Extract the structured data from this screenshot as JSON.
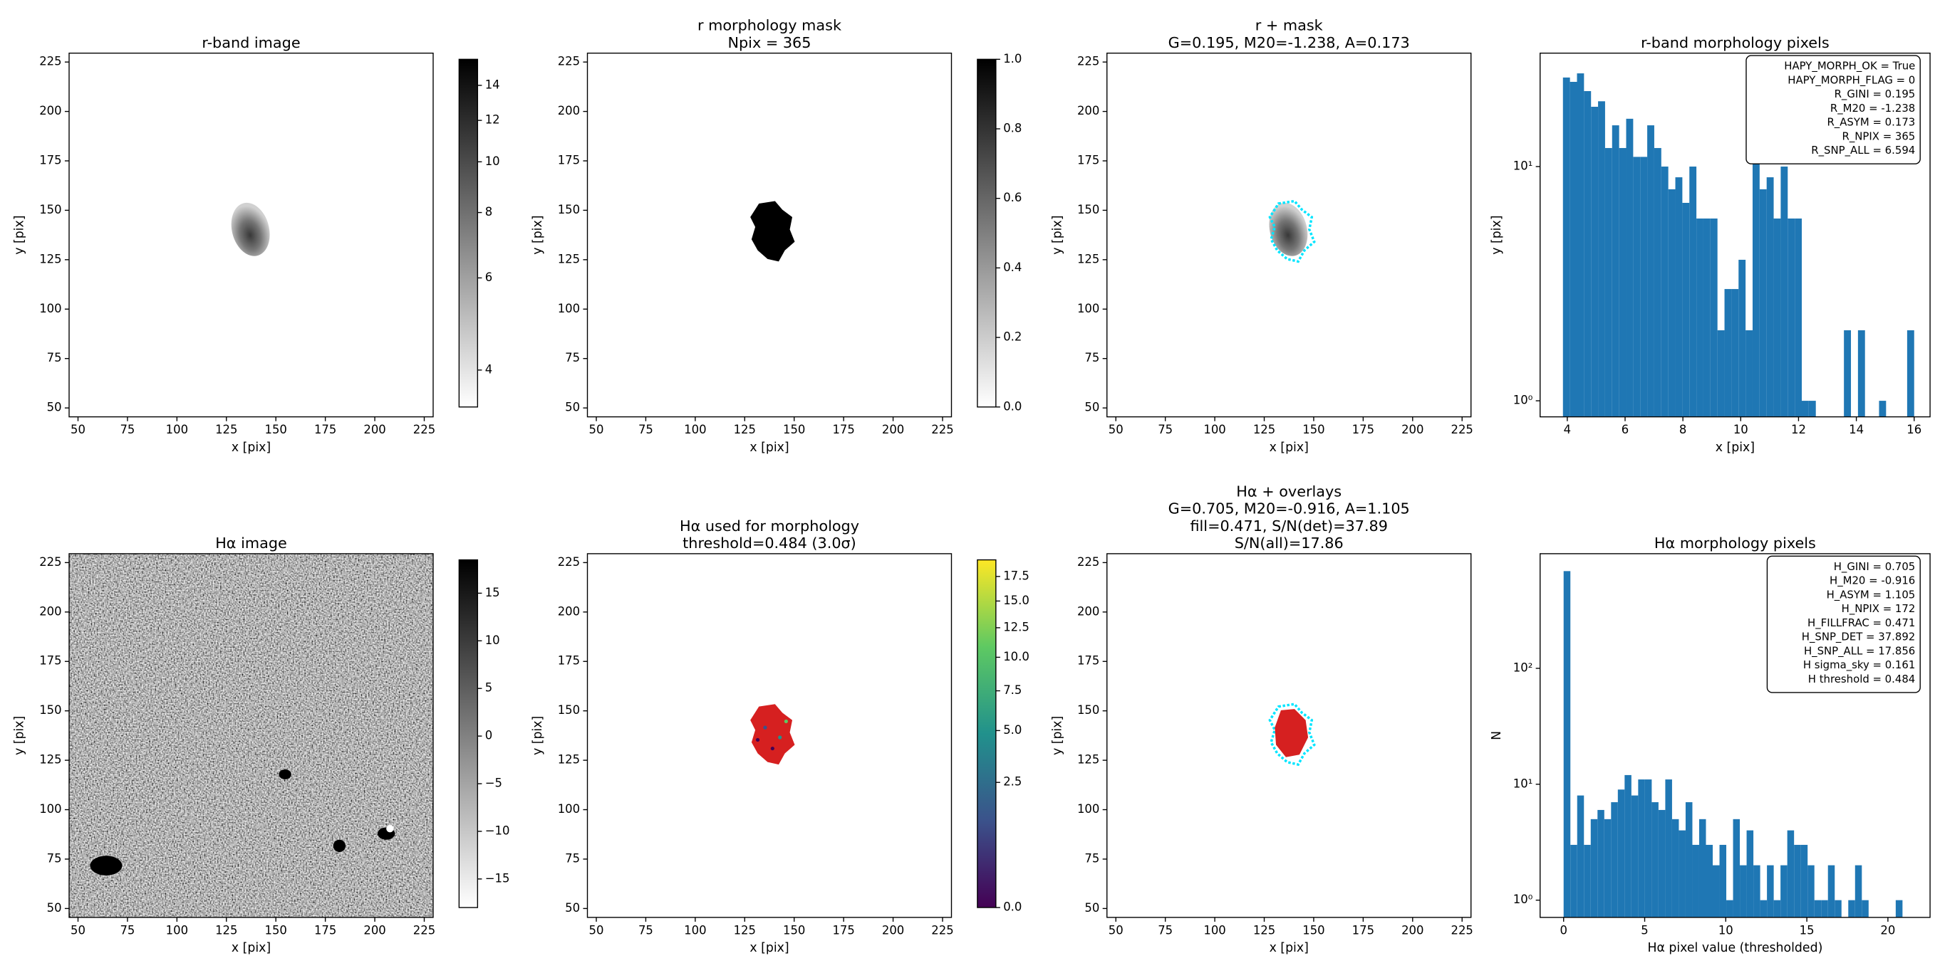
{
  "chart_data": [
    {
      "type": "image",
      "title": [
        "r-band image"
      ],
      "xlabel": "x [pix]",
      "ylabel": "y [pix]",
      "xlim": [
        45.5,
        229.5
      ],
      "ylim": [
        45.5,
        229.5
      ],
      "xticks": [
        50,
        75,
        100,
        125,
        150,
        175,
        200,
        225
      ],
      "yticks": [
        50,
        75,
        100,
        125,
        150,
        175,
        200,
        225
      ],
      "colorbar": {
        "cmap": "gray_r",
        "scale": "log",
        "lim": [
          3.4,
          15.7
        ],
        "ticks": [
          4,
          6,
          8,
          10,
          12,
          14
        ]
      }
    },
    {
      "type": "image",
      "title": [
        "r morphology mask",
        "Npix = 365"
      ],
      "xlabel": "x [pix]",
      "ylabel": "y [pix]",
      "xlim": [
        45.5,
        229.5
      ],
      "ylim": [
        45.5,
        229.5
      ],
      "xticks": [
        50,
        75,
        100,
        125,
        150,
        175,
        200,
        225
      ],
      "yticks": [
        50,
        75,
        100,
        125,
        150,
        175,
        200,
        225
      ],
      "colorbar": {
        "cmap": "gray_r",
        "scale": "linear",
        "lim": [
          0,
          1
        ],
        "ticks": [
          {
            "value": 0,
            "label": "0.0"
          },
          0.2,
          0.4,
          0.6,
          0.8,
          {
            "value": 1,
            "label": "1.0"
          }
        ]
      }
    },
    {
      "type": "image",
      "title": [
        "r + mask",
        "G=0.195, M20=-1.238, A=0.173"
      ],
      "xlabel": "x [pix]",
      "ylabel": "y [pix]",
      "xlim": [
        45.5,
        229.5
      ],
      "ylim": [
        45.5,
        229.5
      ],
      "xticks": [
        50,
        75,
        100,
        125,
        150,
        175,
        200,
        225
      ],
      "yticks": [
        50,
        75,
        100,
        125,
        150,
        175,
        200,
        225
      ]
    },
    {
      "type": "histogram",
      "title": [
        "r-band morphology pixels"
      ],
      "xlabel": "x [pix]",
      "ylabel": "y [pix]",
      "color": "#1f77b4",
      "ylog": true,
      "xlim": [
        3.06,
        16.55
      ],
      "ylim": [
        0.854,
        30.5
      ],
      "xticks": [
        4,
        6,
        8,
        10,
        12,
        14,
        16
      ],
      "yticks": [
        {
          "value": 1,
          "label": "10⁰"
        },
        {
          "value": 10,
          "label": "10¹"
        }
      ],
      "bins": [
        3.85,
        4.093,
        4.336,
        4.579,
        4.822,
        5.065,
        5.308,
        5.551,
        5.794,
        6.037,
        6.28,
        6.523,
        6.766,
        7.009,
        7.252,
        7.495,
        7.738,
        7.981,
        8.224,
        8.467,
        8.71,
        8.953,
        9.196,
        9.439,
        9.682,
        9.925,
        10.168,
        10.411,
        10.654,
        10.897,
        11.14,
        11.383,
        11.626,
        11.869,
        12.112,
        12.355,
        12.598,
        12.841,
        13.084,
        13.327,
        13.57,
        13.813,
        14.056,
        14.299,
        14.542,
        14.785,
        15.028,
        15.271,
        15.514,
        15.757,
        16.0
      ],
      "values": [
        24,
        23,
        25,
        21,
        18,
        19,
        12,
        15,
        12,
        16,
        11,
        11,
        15,
        12,
        10,
        8,
        9,
        7,
        10,
        6,
        6,
        6,
        2,
        3,
        3,
        4,
        2,
        13,
        8,
        9,
        6,
        10,
        6,
        6,
        1,
        1,
        0,
        0,
        0,
        0,
        2,
        0,
        2,
        0,
        0,
        1,
        0,
        0,
        0,
        2
      ],
      "textbox": [
        "HAPY_MORPH_OK = True",
        "HAPY_MORPH_FLAG = 0",
        "R_GINI = 0.195",
        "R_M20 = -1.238",
        "R_ASYM = 0.173",
        "R_NPIX = 365",
        "R_SNP_ALL = 6.594"
      ]
    },
    {
      "type": "image",
      "title": [
        "Hα image"
      ],
      "xlabel": "x [pix]",
      "ylabel": "y [pix]",
      "xlim": [
        45.5,
        229.5
      ],
      "ylim": [
        45.5,
        229.5
      ],
      "xticks": [
        50,
        75,
        100,
        125,
        150,
        175,
        200,
        225
      ],
      "yticks": [
        50,
        75,
        100,
        125,
        150,
        175,
        200,
        225
      ],
      "colorbar": {
        "cmap": "gray_r",
        "scale": "linear",
        "lim": [
          -18,
          18.5
        ],
        "ticks": [
          15,
          10,
          5,
          0,
          {
            "value": -5,
            "label": "−5"
          },
          {
            "value": -10,
            "label": "−10"
          },
          {
            "value": -15,
            "label": "−15"
          }
        ]
      }
    },
    {
      "type": "image",
      "title": [
        "Hα used for morphology",
        "threshold=0.484 (3.0σ)"
      ],
      "xlabel": "x [pix]",
      "ylabel": "y [pix]",
      "xlim": [
        45.5,
        229.5
      ],
      "ylim": [
        45.5,
        229.5
      ],
      "xticks": [
        50,
        75,
        100,
        125,
        150,
        175,
        200,
        225
      ],
      "yticks": [
        50,
        75,
        100,
        125,
        150,
        175,
        200,
        225
      ],
      "colorbar": {
        "cmap": "viridis",
        "scale": "sqrt",
        "lim": [
          0,
          19.3
        ],
        "ticks": [
          {
            "value": 0,
            "label": "0.0"
          },
          2.5,
          {
            "value": 5,
            "label": "5.0"
          },
          7.5,
          {
            "value": 10,
            "label": "10.0"
          },
          12.5,
          {
            "value": 15,
            "label": "15.0"
          },
          17.5
        ]
      }
    },
    {
      "type": "image",
      "title": [
        "Hα + overlays",
        "G=0.705, M20=-0.916, A=1.105",
        "fill=0.471, S/N(det)=37.89",
        "S/N(all)=17.86"
      ],
      "xlabel": "x [pix]",
      "ylabel": "y [pix]",
      "xlim": [
        45.5,
        229.5
      ],
      "ylim": [
        45.5,
        229.5
      ],
      "xticks": [
        50,
        75,
        100,
        125,
        150,
        175,
        200,
        225
      ],
      "yticks": [
        50,
        75,
        100,
        125,
        150,
        175,
        200,
        225
      ]
    },
    {
      "type": "histogram",
      "title": [
        "Hα morphology pixels"
      ],
      "xlabel": "Hα pixel value (thresholded)",
      "ylabel": "N",
      "color": "#1f77b4",
      "ylog": true,
      "xlim": [
        -1.45,
        22.6
      ],
      "ylim": [
        0.71,
        975
      ],
      "xticks": [
        0,
        5,
        10,
        15,
        20
      ],
      "yticks": [
        {
          "value": 1,
          "label": "10⁰"
        },
        {
          "value": 10,
          "label": "10¹"
        },
        {
          "value": 100,
          "label": "10²"
        }
      ],
      "bins": [
        0,
        0.418,
        0.836,
        1.254,
        1.672,
        2.09,
        2.508,
        2.926,
        3.344,
        3.762,
        4.18,
        4.598,
        5.016,
        5.434,
        5.852,
        6.27,
        6.688,
        7.106,
        7.524,
        7.942,
        8.36,
        8.778,
        9.196,
        9.614,
        10.032,
        10.45,
        10.868,
        11.286,
        11.704,
        12.122,
        12.54,
        12.958,
        13.376,
        13.794,
        14.212,
        14.63,
        15.048,
        15.466,
        15.884,
        16.302,
        16.72,
        17.138,
        17.556,
        17.974,
        18.392,
        18.81,
        19.228,
        19.646,
        20.064,
        20.482,
        20.9
      ],
      "values": [
        690,
        3,
        8,
        3,
        5,
        6,
        5,
        7,
        9,
        12,
        8,
        11,
        11,
        7,
        6,
        11,
        5,
        4,
        7,
        3,
        5,
        3,
        2,
        3,
        1,
        5,
        2,
        4,
        2,
        1,
        2,
        1,
        2,
        4,
        3,
        3,
        2,
        1,
        1,
        2,
        1,
        0,
        1,
        2,
        1,
        0,
        0,
        0,
        0,
        1
      ],
      "textbox": [
        "H_GINI = 0.705",
        "H_M20 = -0.916",
        "H_ASYM = 1.105",
        "H_NPIX = 172",
        "H_FILLFRAC = 0.471",
        "H_SNP_DET = 37.892",
        "H_SNP_ALL = 17.856",
        "H sigma_sky = 0.161",
        "H threshold = 0.484"
      ]
    }
  ]
}
